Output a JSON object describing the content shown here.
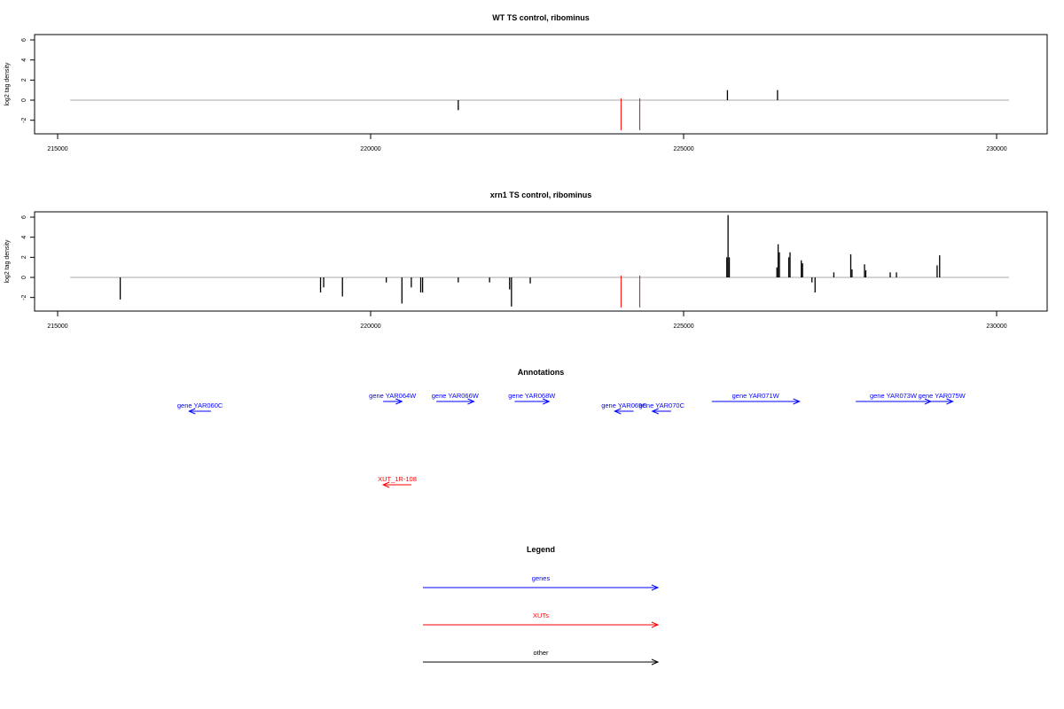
{
  "chart_data": [
    {
      "type": "bar",
      "title": "WT TS control, ribominus",
      "ylabel": "log2 tag density",
      "xlim": [
        215000,
        230000
      ],
      "ylim": [
        -3,
        6
      ],
      "x_ticks": [
        215000,
        220000,
        225000,
        230000
      ],
      "y_ticks": [
        -2,
        0,
        2,
        4,
        6
      ],
      "baseline_x_range": [
        215200,
        230200
      ],
      "bars": [
        [
          221400,
          -1.0
        ],
        [
          225700,
          1.0
        ],
        [
          226500,
          1.0
        ]
      ],
      "highlight_marks_x": [
        224000,
        224300
      ],
      "highlight_color": "#ff0000"
    },
    {
      "type": "bar",
      "title": "xrn1 TS control, ribominus",
      "ylabel": "log2 tag density",
      "xlim": [
        215000,
        230000
      ],
      "ylim": [
        -3,
        6
      ],
      "x_ticks": [
        215000,
        220000,
        225000,
        230000
      ],
      "y_ticks": [
        -2,
        0,
        2,
        4,
        6
      ],
      "baseline_x_range": [
        215200,
        230200
      ],
      "bars": [
        [
          216000,
          -2.2
        ],
        [
          219200,
          -1.5
        ],
        [
          219250,
          -1.0
        ],
        [
          219550,
          -1.9
        ],
        [
          220250,
          -0.5
        ],
        [
          220500,
          -2.6
        ],
        [
          220650,
          -1.0
        ],
        [
          220800,
          -1.5
        ],
        [
          220830,
          -1.5
        ],
        [
          221400,
          -0.5
        ],
        [
          221900,
          -0.5
        ],
        [
          222220,
          -1.2
        ],
        [
          222250,
          -2.9
        ],
        [
          222550,
          -0.6
        ],
        [
          225690,
          2.0
        ],
        [
          225710,
          6.2
        ],
        [
          225730,
          2.0
        ],
        [
          226490,
          1.0
        ],
        [
          226510,
          3.3
        ],
        [
          226530,
          2.5
        ],
        [
          226680,
          2.0
        ],
        [
          226700,
          2.5
        ],
        [
          226880,
          1.7
        ],
        [
          226900,
          1.4
        ],
        [
          227050,
          -0.5
        ],
        [
          227100,
          -1.5
        ],
        [
          227400,
          0.5
        ],
        [
          227670,
          2.3
        ],
        [
          227690,
          0.8
        ],
        [
          227890,
          1.3
        ],
        [
          227910,
          0.7
        ],
        [
          228300,
          0.5
        ],
        [
          228400,
          0.5
        ],
        [
          229050,
          1.2
        ],
        [
          229090,
          2.2
        ]
      ],
      "highlight_marks_x": [
        224000,
        224300
      ],
      "highlight_color": "#ff0000"
    }
  ],
  "annotations": {
    "title": "Annotations",
    "features": [
      {
        "label": "gene YAR060C",
        "strand": "-",
        "start": 217100,
        "end": 217450,
        "row": 1,
        "kind": "gene"
      },
      {
        "label": "gene YAR064W",
        "strand": "+",
        "start": 220200,
        "end": 220500,
        "row": 0,
        "kind": "gene"
      },
      {
        "label": "gene YAR066W",
        "strand": "+",
        "start": 221050,
        "end": 221650,
        "row": 0,
        "kind": "gene"
      },
      {
        "label": "gene YAR068W",
        "strand": "+",
        "start": 222300,
        "end": 222850,
        "row": 0,
        "kind": "gene"
      },
      {
        "label": "gene YAR069C",
        "strand": "-",
        "start": 223900,
        "end": 224200,
        "row": 1,
        "kind": "gene"
      },
      {
        "label": "gene YAR070C",
        "strand": "-",
        "start": 224500,
        "end": 224800,
        "row": 1,
        "kind": "gene"
      },
      {
        "label": "gene YAR071W",
        "strand": "+",
        "start": 225450,
        "end": 226850,
        "row": 0,
        "kind": "gene"
      },
      {
        "label": "gene YAR073W",
        "strand": "+",
        "start": 227750,
        "end": 228950,
        "row": 0,
        "kind": "gene"
      },
      {
        "label": "gene YAR075W",
        "strand": "+",
        "start": 228950,
        "end": 229300,
        "row": 0,
        "kind": "gene"
      },
      {
        "label": "XUT_1R-108",
        "strand": "-",
        "start": 220200,
        "end": 220650,
        "row": 2,
        "kind": "xut"
      }
    ]
  },
  "legend": {
    "title": "Legend",
    "entries": [
      {
        "label": "genes",
        "color": "#0000ff"
      },
      {
        "label": "XUTs",
        "color": "#ff0000"
      },
      {
        "label": "other",
        "color": "#000000"
      }
    ]
  },
  "colors": {
    "baseline": "#aaaaaa",
    "bars": "#000000",
    "genes": "#0000ff",
    "xuts": "#ff0000"
  }
}
